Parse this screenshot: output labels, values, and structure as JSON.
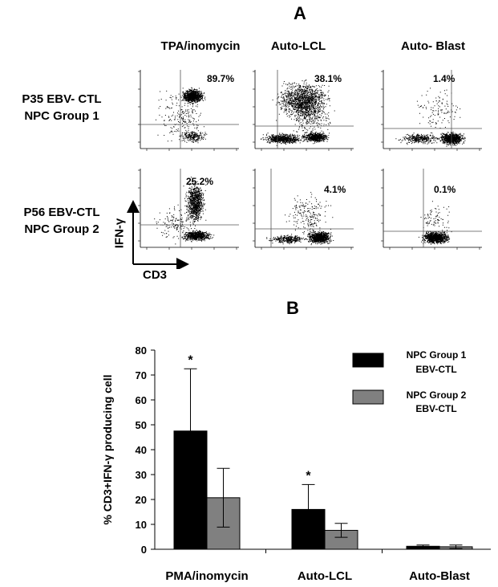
{
  "panel_a": {
    "letter": "A",
    "columns": [
      "TPA/inomycin",
      "Auto-LCL",
      "Auto- Blast"
    ],
    "rows": [
      {
        "line1": "P35 EBV- CTL",
        "line2": "NPC Group 1",
        "values": [
          "89.7%",
          "38.1%",
          "1.4%"
        ]
      },
      {
        "line1": "P56 EBV-CTL",
        "line2": "NPC Group 2",
        "values": [
          "25.2%",
          "4.1%",
          "0.1%"
        ]
      }
    ],
    "y_axis_label": "IFN-γ",
    "x_axis_label": "CD3"
  },
  "chart_data": {
    "type": "bar",
    "panel_letter": "B",
    "categories": [
      "PMA/inomycin",
      "Auto-LCL",
      "Auto-Blast"
    ],
    "series": [
      {
        "name": "NPC Group 1 EBV-CTL",
        "legend_line1": "NPC Group 1",
        "legend_line2": "EBV-CTL",
        "color": "#000000",
        "values": [
          47.5,
          16,
          1.2
        ],
        "errors": [
          25,
          10,
          0.5
        ]
      },
      {
        "name": "NPC Group 2 EBV-CTL",
        "legend_line1": "NPC Group 2",
        "legend_line2": "EBV-CTL",
        "color": "#808080",
        "values": [
          20.7,
          7.6,
          1.0
        ],
        "errors": [
          11.8,
          2.8,
          0.7
        ]
      }
    ],
    "ylabel": "% CD3+IFN-γ producing cell",
    "xlabel": "",
    "ylim": [
      0,
      80
    ],
    "yticks": [
      0,
      10,
      20,
      30,
      40,
      50,
      60,
      70,
      80
    ],
    "significance": [
      {
        "category": 0,
        "series": 0,
        "mark": "*"
      },
      {
        "category": 1,
        "series": 0,
        "mark": "*"
      }
    ],
    "grid": false,
    "legend": "top-right"
  },
  "colors": {
    "group1": "#000000",
    "group2": "#808080"
  }
}
